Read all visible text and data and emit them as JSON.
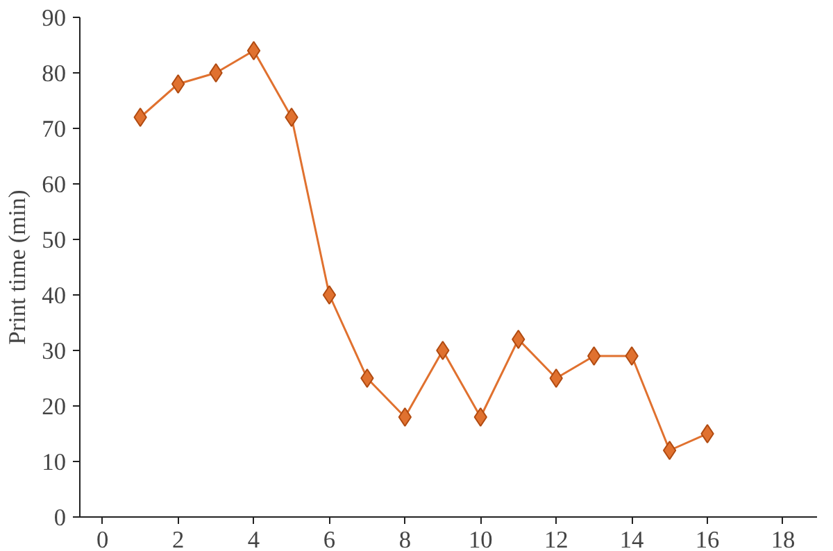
{
  "chart_data": {
    "type": "line",
    "ylabel": "Print time (min)",
    "marker": "diamond",
    "line_style": "solid",
    "grid": false,
    "x": [
      1,
      2,
      3,
      4,
      5,
      6,
      7,
      8,
      9,
      10,
      11,
      12,
      13,
      14,
      15,
      16
    ],
    "series": [
      {
        "color": "#e0712f",
        "values": [
          72,
          78,
          80,
          84,
          72,
          40,
          25,
          18,
          30,
          18,
          32,
          25,
          29,
          29,
          12,
          15
        ]
      }
    ],
    "xlim": [
      -0.6,
      18.9
    ],
    "xticks": [
      0,
      2,
      4,
      6,
      8,
      10,
      12,
      14,
      16,
      18
    ],
    "ylim": [
      0,
      90
    ],
    "yticks": [
      0,
      10,
      20,
      30,
      40,
      50,
      60,
      70,
      80,
      90
    ]
  }
}
